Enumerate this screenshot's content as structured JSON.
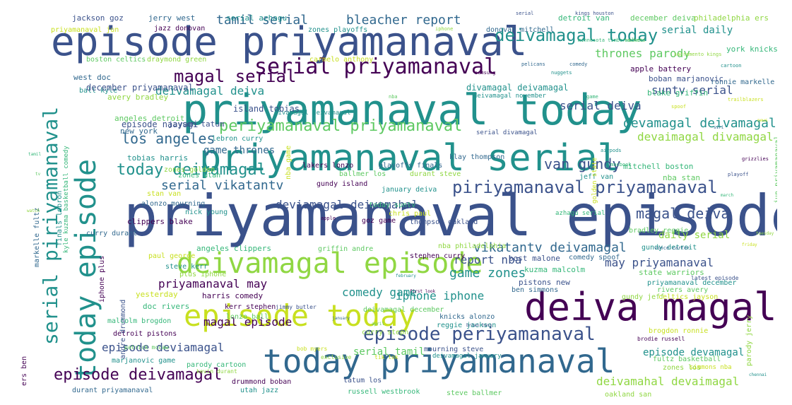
{
  "palette": {
    "dark_purple": "#440154",
    "indigo": "#3b528b",
    "blue": "#31688e",
    "teal": "#21918c",
    "green": "#35b779",
    "light_green": "#5ec962",
    "yellow_green": "#90d743",
    "yellow": "#c8e020",
    "bright_yellow": "#fde725",
    "background": "#ffffff"
  },
  "words": [
    {
      "text": "priyamanaval episode"
    },
    {
      "text": "priyamanaval today"
    },
    {
      "text": "episode priyamanaval"
    },
    {
      "text": "priyamanaval serial"
    },
    {
      "text": "deiva magal"
    },
    {
      "text": "today priyamanaval"
    },
    {
      "text": "episode today"
    },
    {
      "text": "deivamagal episode"
    },
    {
      "text": "today episode"
    },
    {
      "text": "serial priyamanaval"
    },
    {
      "text": "serial piriyamanaval"
    },
    {
      "text": "piriyamanaval priyamanaval"
    },
    {
      "text": "episode periyamanaval"
    },
    {
      "text": "periyamanaval priyamanaval"
    },
    {
      "text": "deivamagal today"
    },
    {
      "text": "magal serial"
    },
    {
      "text": "episode deivamagal"
    },
    {
      "text": "today deivamagal"
    },
    {
      "text": "tamil serial"
    },
    {
      "text": "bleacher report"
    },
    {
      "text": "los angeles"
    },
    {
      "text": "magal deiva"
    },
    {
      "text": "van gundy"
    },
    {
      "text": "devamagal deivamagal"
    },
    {
      "text": "serial vikatantv"
    },
    {
      "text": "vikatantv deivamagal"
    },
    {
      "text": "game zones"
    },
    {
      "text": "report nba"
    },
    {
      "text": "may priyamanaval"
    },
    {
      "text": "deivamagal deiva"
    },
    {
      "text": "episode deviamagal"
    },
    {
      "text": "game thrones"
    },
    {
      "text": "priyamanaval may"
    },
    {
      "text": "comedy game"
    },
    {
      "text": "iphone iphone"
    },
    {
      "text": "serial deiva"
    },
    {
      "text": "suntv serial"
    },
    {
      "text": "magal episode"
    },
    {
      "text": "episode devamagal"
    },
    {
      "text": "serial tamil"
    },
    {
      "text": "deviamagal deivamahal"
    },
    {
      "text": "devaimagal divamagal"
    },
    {
      "text": "deivamahal devaimagal"
    },
    {
      "text": "daily serial"
    },
    {
      "text": "thrones parody"
    },
    {
      "text": "serial daily"
    },
    {
      "text": "divamagal deivamagal"
    },
    {
      "text": "episode naayagi"
    },
    {
      "text": "jackson goz"
    },
    {
      "text": "jerry west"
    },
    {
      "text": "serial azhagu"
    },
    {
      "text": "detroit van"
    },
    {
      "text": "december deiva"
    },
    {
      "text": "philadelphia ers"
    },
    {
      "text": "priyamanaval jun"
    },
    {
      "text": "jazz donovan"
    },
    {
      "text": "donovan mitchell"
    },
    {
      "text": "ronnie markelle"
    },
    {
      "text": "zones playoffs"
    },
    {
      "text": "york knicks"
    },
    {
      "text": "boston celtics"
    },
    {
      "text": "draymond green"
    },
    {
      "text": "carmelo anthony"
    },
    {
      "text": "apple battery"
    },
    {
      "text": "boban marjanovic"
    },
    {
      "text": "west doc"
    },
    {
      "text": "ball kyle"
    },
    {
      "text": "blake griffin"
    },
    {
      "text": "december priyamanaval"
    },
    {
      "text": "avery bradley"
    },
    {
      "text": "island tobias"
    },
    {
      "text": "angeles detroit"
    },
    {
      "text": "jayson tatum"
    },
    {
      "text": "new york"
    },
    {
      "text": "lebron curry"
    },
    {
      "text": "mitchell boston"
    },
    {
      "text": "nba stan"
    },
    {
      "text": "zones golden"
    },
    {
      "text": "tobias harris"
    },
    {
      "text": "lakers lonzo"
    },
    {
      "text": "playoffs finals"
    },
    {
      "text": "klay thompson"
    },
    {
      "text": "jeff van"
    },
    {
      "text": "zones utah"
    },
    {
      "text": "ballmer los"
    },
    {
      "text": "durant steve"
    },
    {
      "text": "stan van"
    },
    {
      "text": "gundy island"
    },
    {
      "text": "january deiva"
    },
    {
      "text": "alonzo mourning"
    },
    {
      "text": "nick young"
    },
    {
      "text": "today suntv"
    },
    {
      "text": "bradley reggie"
    },
    {
      "text": "clippers blake"
    },
    {
      "text": "chris paul"
    },
    {
      "text": "goz game"
    },
    {
      "text": "thompson oakland"
    },
    {
      "text": "curry durant"
    },
    {
      "text": "gundy detroit"
    },
    {
      "text": "angeles clippers"
    },
    {
      "text": "griffin andre"
    },
    {
      "text": "nba philadelphia"
    },
    {
      "text": "paul george"
    },
    {
      "text": "stephen curry"
    },
    {
      "text": "post malone"
    },
    {
      "text": "comedy spoof"
    },
    {
      "text": "steve kerr"
    },
    {
      "text": "kuzma malcolm"
    },
    {
      "text": "state warriors"
    },
    {
      "text": "plus iphone"
    },
    {
      "text": "yesterday"
    },
    {
      "text": "harris comedy"
    },
    {
      "text": "pistons new"
    },
    {
      "text": "ben simmons"
    },
    {
      "text": "priyamanaval december"
    },
    {
      "text": "doc rivers"
    },
    {
      "text": "rivers avery"
    },
    {
      "text": "gundy jeff"
    },
    {
      "text": "celtics jayson"
    },
    {
      "text": "kerr stephen"
    },
    {
      "text": "jimmy butler"
    },
    {
      "text": "knicks alonzo"
    },
    {
      "text": "reggie jackson"
    },
    {
      "text": "malcolm brogdon"
    },
    {
      "text": "lonzo ball"
    },
    {
      "text": "curry steph"
    },
    {
      "text": "brogdon ronnie"
    },
    {
      "text": "detroit pistons"
    },
    {
      "text": "mourning steve"
    },
    {
      "text": "deivamagal january"
    },
    {
      "text": "marjanovic game"
    },
    {
      "text": "parody cartoon"
    },
    {
      "text": "fultz basketball"
    },
    {
      "text": "zones los"
    },
    {
      "text": "simmons nba"
    },
    {
      "text": "drummond boban"
    },
    {
      "text": "tatum los"
    },
    {
      "text": "durant priyamanaval"
    },
    {
      "text": "utah jazz"
    },
    {
      "text": "russell westbrook"
    },
    {
      "text": "steve ballmer"
    },
    {
      "text": "oakland san"
    },
    {
      "text": "nba game"
    },
    {
      "text": "iphone plus"
    },
    {
      "text": "andre drummond"
    },
    {
      "text": "markelle fultz"
    },
    {
      "text": "finals lebron"
    },
    {
      "text": "kyle kuzma basketball comedy"
    },
    {
      "text": "jun priyamanaval"
    },
    {
      "text": "parody jerry"
    },
    {
      "text": "golden state"
    },
    {
      "text": "ers ben"
    },
    {
      "text": "serial divamagal"
    },
    {
      "text": "deivamagal november"
    },
    {
      "text": "divamagal deivamagal"
    },
    {
      "text": "azhagu serial"
    },
    {
      "text": "deivamagal december"
    },
    {
      "text": "exclusive"
    },
    {
      "text": "tik tok"
    },
    {
      "text": "apple"
    },
    {
      "text": "serial"
    },
    {
      "text": "comedy"
    },
    {
      "text": "cartoon"
    },
    {
      "text": "game"
    },
    {
      "text": "nba"
    },
    {
      "text": "iphone"
    },
    {
      "text": "spoof"
    },
    {
      "text": "samsung"
    },
    {
      "text": "kings houston"
    },
    {
      "text": "pelicans"
    },
    {
      "text": "nuggets"
    },
    {
      "text": "minnesota timberwolves"
    },
    {
      "text": "rockets"
    },
    {
      "text": "sacramento kings"
    },
    {
      "text": "trailblazers"
    },
    {
      "text": "grizzlies"
    },
    {
      "text": "playoff"
    },
    {
      "text": "vince carter"
    },
    {
      "text": "airpods"
    },
    {
      "text": "macbook"
    },
    {
      "text": "patrick mccaw"
    },
    {
      "text": "kevin durant"
    },
    {
      "text": "bob myers"
    },
    {
      "text": "brodie russell"
    },
    {
      "text": "latest episode"
    },
    {
      "text": "january"
    },
    {
      "text": "february"
    },
    {
      "text": "march"
    },
    {
      "text": "april"
    },
    {
      "text": "tuesday"
    },
    {
      "text": "friday"
    },
    {
      "text": "first look"
    },
    {
      "text": "brian tong"
    },
    {
      "text": "siri"
    },
    {
      "text": "chennai"
    },
    {
      "text": "tamil"
    },
    {
      "text": "tv"
    },
    {
      "text": "watch"
    },
    {
      "text": "news"
    }
  ]
}
